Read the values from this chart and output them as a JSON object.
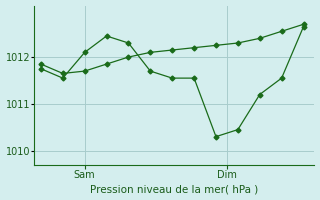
{
  "line1_x": [
    0,
    1,
    2,
    3,
    4,
    5,
    6,
    7,
    8,
    9,
    10,
    11,
    12
  ],
  "line1_y": [
    1011.75,
    1011.55,
    1012.1,
    1012.45,
    1012.3,
    1011.7,
    1011.55,
    1011.55,
    1010.3,
    1010.45,
    1011.2,
    1011.55,
    1012.65
  ],
  "line2_x": [
    0,
    1,
    2,
    3,
    4,
    5,
    6,
    7,
    8,
    9,
    10,
    11,
    12
  ],
  "line2_y": [
    1011.85,
    1011.65,
    1011.7,
    1011.85,
    1012.0,
    1012.1,
    1012.15,
    1012.2,
    1012.25,
    1012.3,
    1012.4,
    1012.55,
    1012.7
  ],
  "sam_x": 2.0,
  "dim_x": 8.5,
  "yticks": [
    1010,
    1011,
    1012
  ],
  "ymin": 1009.7,
  "ymax": 1013.1,
  "xmin": -0.3,
  "xmax": 12.5,
  "line_color": "#1a6b1a",
  "bg_color": "#d4eeee",
  "grid_color": "#a8cccc",
  "xlabel": "Pression niveau de la mer( hPa )",
  "xlabel_color": "#1a5c1a",
  "tick_color": "#1a5c1a",
  "marker": "D",
  "marker_size": 2.5
}
